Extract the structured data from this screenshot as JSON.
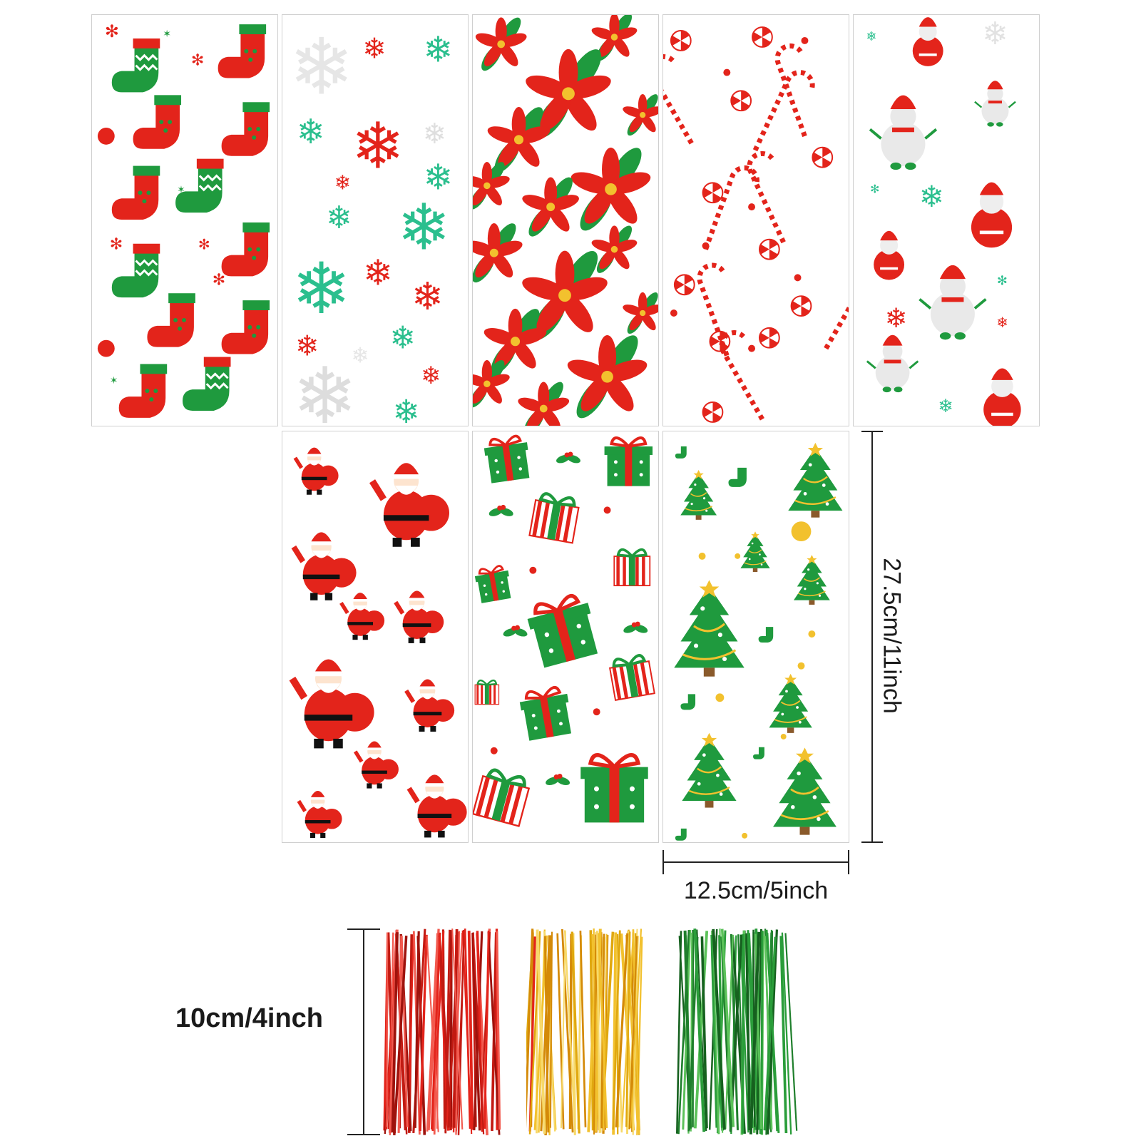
{
  "measurements": {
    "height_label": "27.5cm/11inch",
    "width_label": "12.5cm/5inch",
    "tie_label": "10cm/4inch"
  },
  "bags_top_row": [
    "stocking",
    "snowflake",
    "poinsettia",
    "candy-cane",
    "snowman"
  ],
  "bags_bottom_row": [
    "santa",
    "gift",
    "christmas-tree"
  ],
  "tie_colors": [
    "#e3241b",
    "#f2c12e",
    "#2a9d3a"
  ],
  "colors": {
    "red": "#e3241b",
    "green": "#1f9a3e",
    "teal": "#2bbf8e",
    "gold": "#f2c12e"
  }
}
